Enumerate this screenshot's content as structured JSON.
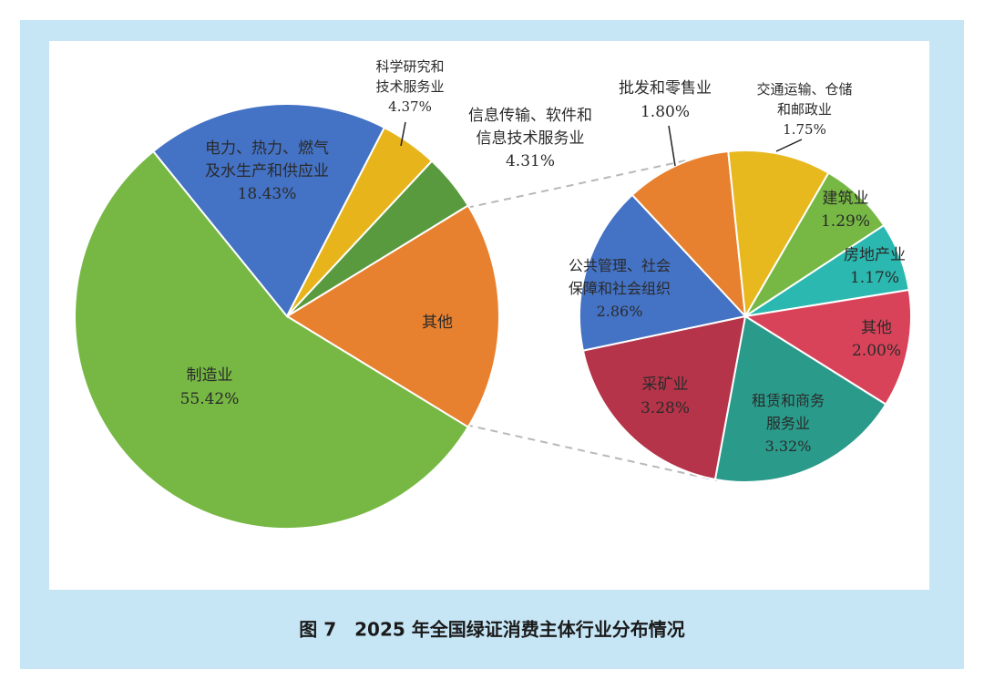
{
  "chart_data": [
    {
      "type": "pie",
      "categories": [
        [
          "其他"
        ],
        [
          "制造业"
        ],
        [
          "电力、热力、燃气",
          "及水生产和供应业"
        ],
        [
          "科学研究和",
          "技术服务业"
        ],
        [
          "信息传输、软件和",
          "信息技术服务业"
        ]
      ],
      "values": [
        17.47,
        55.42,
        18.43,
        4.37,
        4.31
      ],
      "value_labels": [
        null,
        "55.42%",
        "18.43%",
        "4.37%",
        "4.31%"
      ],
      "colors": [
        "#e8812f",
        "#76b843",
        "#4472c4",
        "#e8b41c",
        "#5a9a3e"
      ]
    },
    {
      "type": "pie",
      "categories": [
        [
          "批发和零售业"
        ],
        [
          "交通运输、仓储",
          "和邮政业"
        ],
        [
          "建筑业"
        ],
        [
          "房地产业"
        ],
        [
          "其他"
        ],
        [
          "租赁和商务",
          "服务业"
        ],
        [
          "采矿业"
        ],
        [
          "公共管理、社会",
          "保障和社会组织"
        ]
      ],
      "values": [
        1.8,
        1.75,
        1.29,
        1.17,
        2.0,
        3.32,
        3.28,
        2.86
      ],
      "value_labels": [
        "1.80%",
        "1.75%",
        "1.29%",
        "1.17%",
        "2.00%",
        "3.32%",
        "3.28%",
        "2.86%"
      ],
      "colors": [
        "#e8812f",
        "#e8b81f",
        "#76b843",
        "#2ab8b0",
        "#d9435a",
        "#2a9a8a",
        "#b5344a",
        "#4472c4"
      ]
    }
  ],
  "caption": "图 7　2025 年全国绿证消费主体行业分布情况"
}
